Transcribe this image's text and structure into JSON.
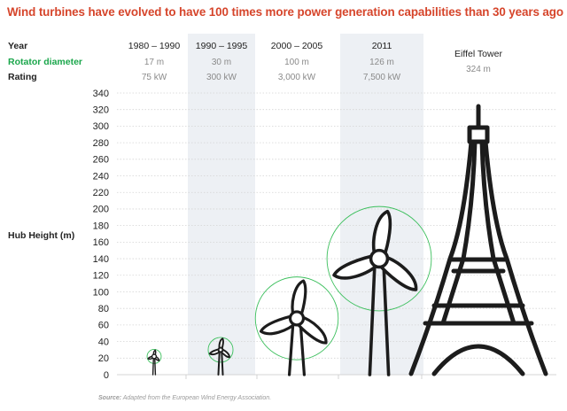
{
  "title": "Wind turbines have evolved to have 100 times more power generation capabilities than 30 years ago",
  "row_labels": {
    "year": "Year",
    "rotor": "Rotator diameter",
    "rating": "Rating",
    "hub": "Hub Height (m)"
  },
  "colors": {
    "title": "#d6452b",
    "rotor_label": "#1aa64b",
    "band": "#edf0f4",
    "circle": "#3bbf5c",
    "structure": "#1c1c1c"
  },
  "source_label": "Source:",
  "source_text": "Adapted from the European Wind Energy Association.",
  "chart_data": {
    "type": "table",
    "ylabel": "Hub Height (m)",
    "ylim": [
      0,
      340
    ],
    "yticks": [
      0,
      20,
      40,
      60,
      80,
      100,
      120,
      140,
      160,
      180,
      200,
      220,
      240,
      260,
      280,
      300,
      320,
      340
    ],
    "grid": true,
    "columns": [
      {
        "period": "1980 – 1990",
        "rotor_diameter": "17 m",
        "rating": "75 kW",
        "rotor_m": 17,
        "hub_m": 22,
        "shaded": false
      },
      {
        "period": "1990 – 1995",
        "rotor_diameter": "30 m",
        "rating": "300 kW",
        "rotor_m": 30,
        "hub_m": 30,
        "shaded": true
      },
      {
        "period": "2000 – 2005",
        "rotor_diameter": "100 m",
        "rating": "3,000 kW",
        "rotor_m": 100,
        "hub_m": 68,
        "shaded": false
      },
      {
        "period": "2011",
        "rotor_diameter": "126 m",
        "rating": "7,500 kW",
        "rotor_m": 126,
        "hub_m": 140,
        "shaded": true
      }
    ],
    "reference": {
      "name": "Eiffel Tower",
      "height_label": "324 m",
      "height_m": 324
    }
  }
}
